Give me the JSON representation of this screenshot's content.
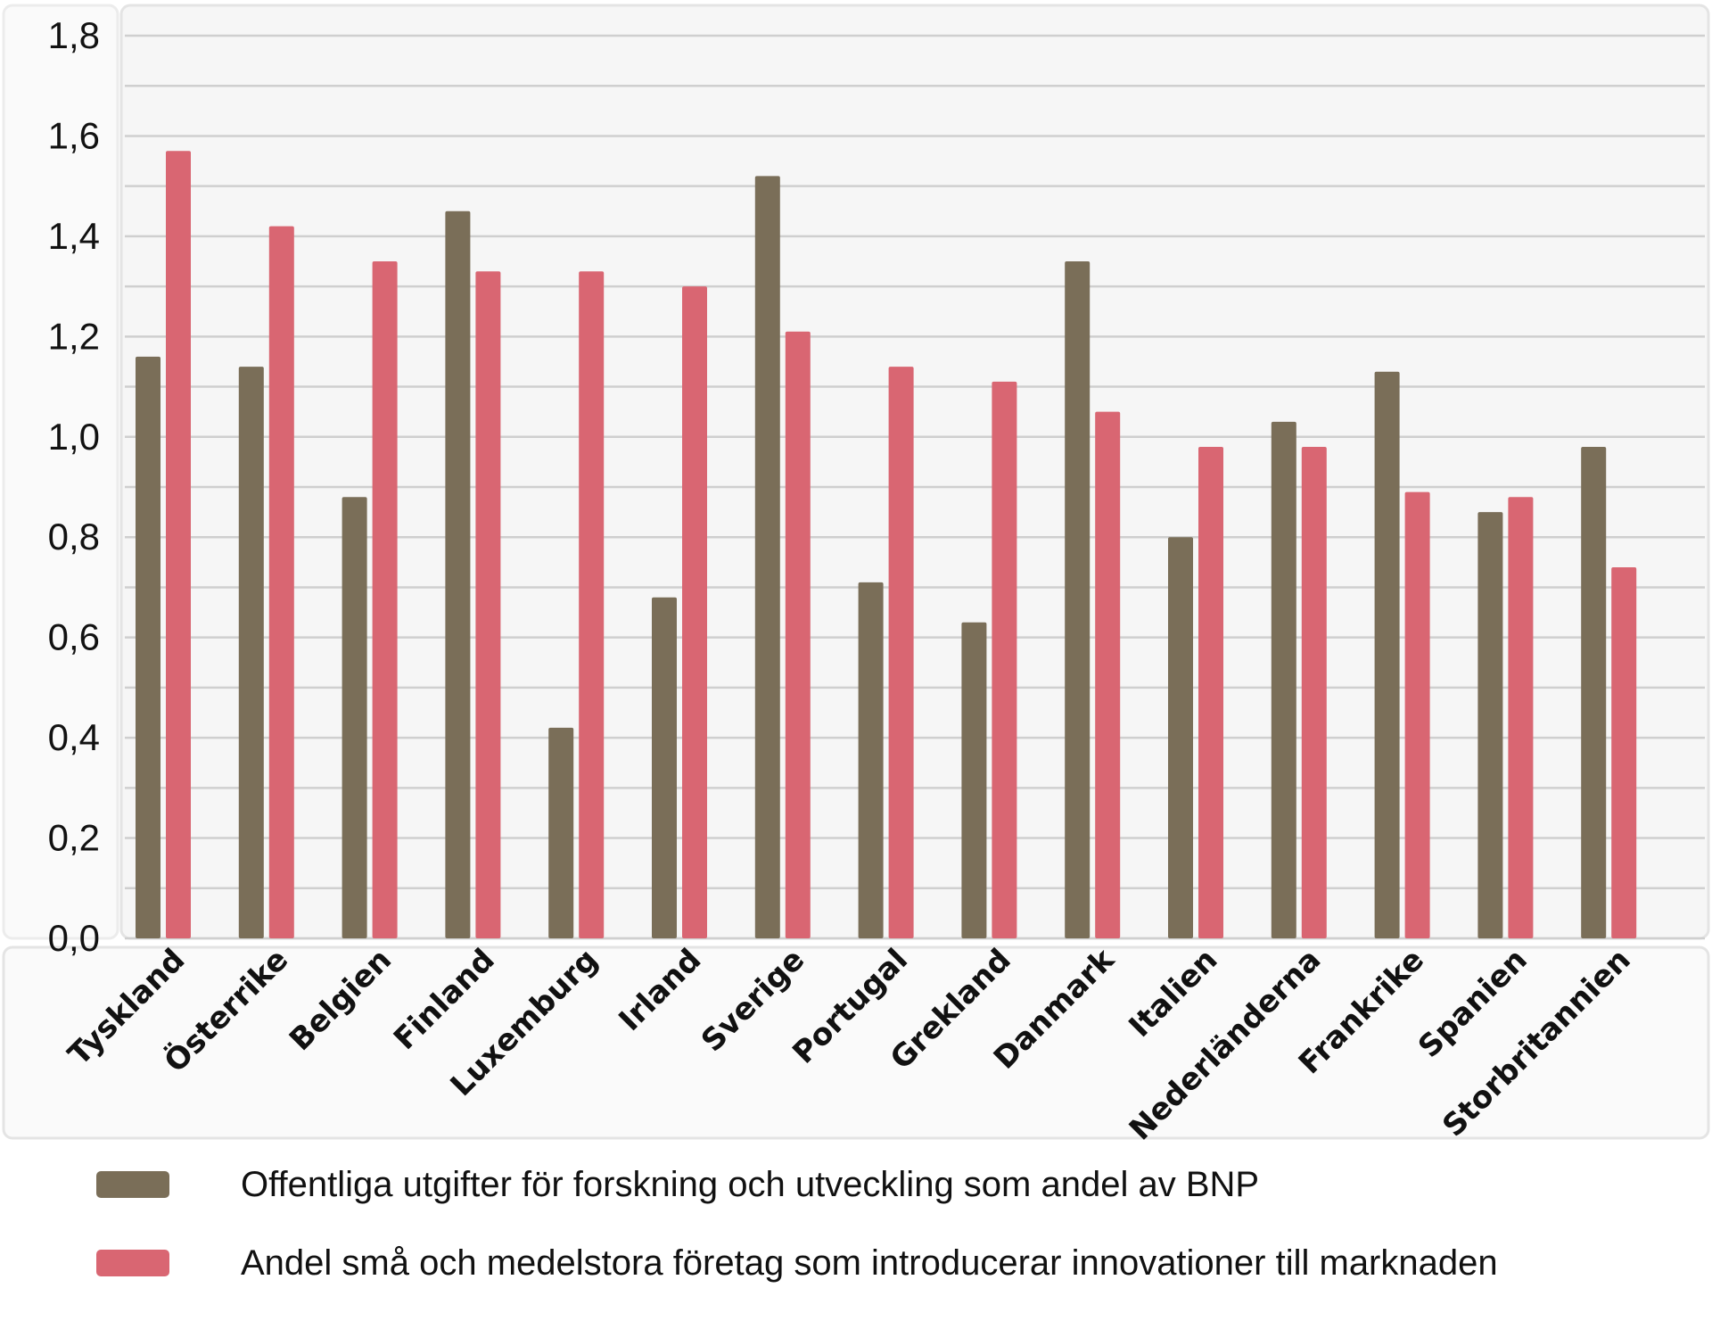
{
  "chart_data": {
    "type": "bar",
    "categories": [
      "Tyskland",
      "Österrike",
      "Belgien",
      "Finland",
      "Luxemburg",
      "Irland",
      "Sverige",
      "Portugal",
      "Grekland",
      "Danmark",
      "Italien",
      "Nederländerna",
      "Frankrike",
      "Spanien",
      "Storbritannien"
    ],
    "series": [
      {
        "name": "Offentliga utgifter för forskning och utveckling som andel av BNP",
        "color": "#7a6e58",
        "values": [
          1.16,
          1.14,
          0.88,
          1.45,
          0.42,
          0.68,
          1.52,
          0.71,
          0.63,
          1.35,
          0.8,
          1.03,
          1.13,
          0.85,
          0.98
        ]
      },
      {
        "name": "Andel små och medelstora företag som introducerar innovationer till marknaden",
        "color": "#d96672",
        "values": [
          1.57,
          1.42,
          1.35,
          1.33,
          1.33,
          1.3,
          1.21,
          1.14,
          1.11,
          1.05,
          0.98,
          0.98,
          0.89,
          0.88,
          0.74
        ]
      }
    ],
    "yticks": [
      "0,0",
      "0,2",
      "0,4",
      "0,6",
      "0,8",
      "1,0",
      "1,2",
      "1,4",
      "1,6",
      "1,8"
    ],
    "ylim": [
      0,
      1.8
    ],
    "grid": true,
    "legend_position": "bottom"
  }
}
